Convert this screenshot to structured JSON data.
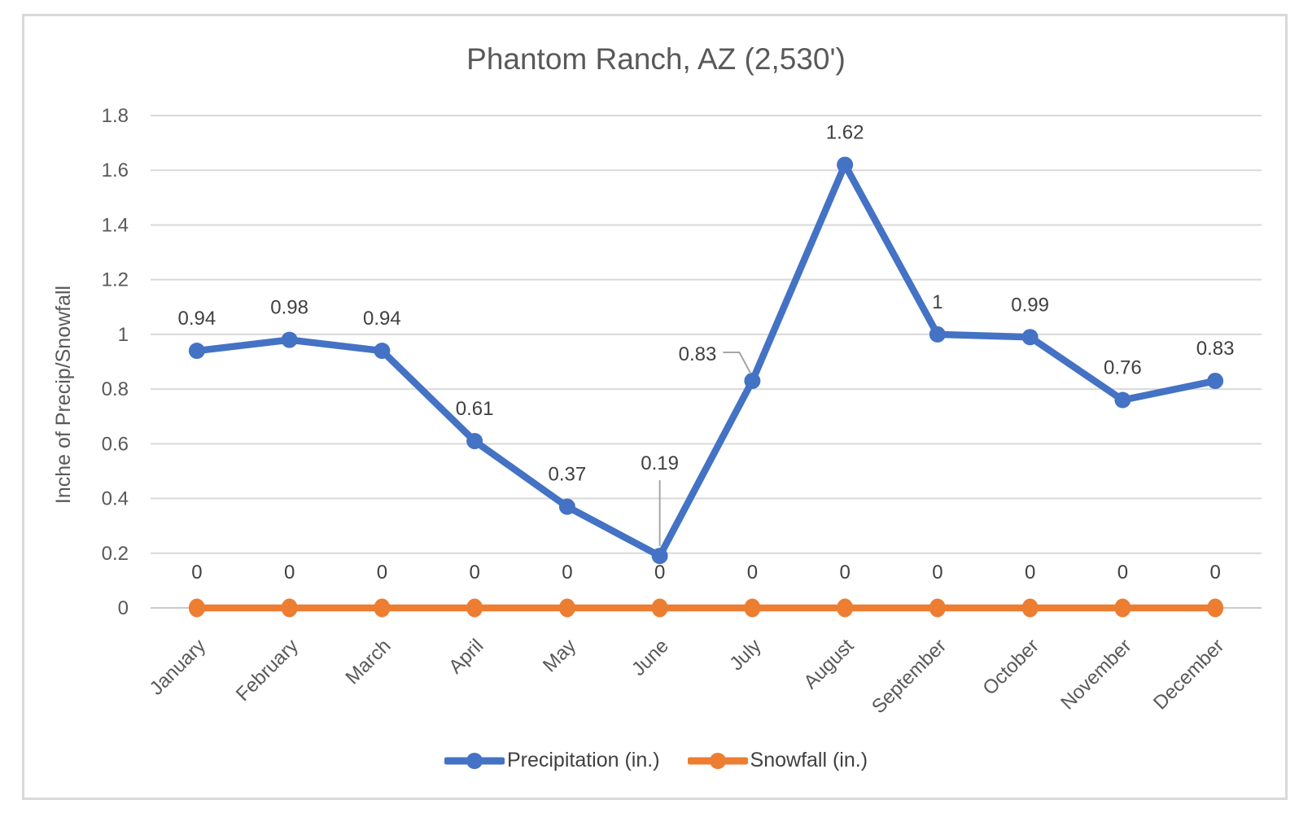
{
  "chart_data": {
    "type": "line",
    "title": "Phantom Ranch, AZ (2,530')",
    "xlabel": "",
    "ylabel": "Inche of Precip/Snowfall",
    "categories": [
      "January",
      "February",
      "March",
      "April",
      "May",
      "June",
      "July",
      "August",
      "September",
      "October",
      "November",
      "December"
    ],
    "series": [
      {
        "name": "Precipitation (in.)",
        "color": "#4472C4",
        "values": [
          0.94,
          0.98,
          0.94,
          0.61,
          0.37,
          0.19,
          0.83,
          1.62,
          1,
          0.99,
          0.76,
          0.83
        ],
        "labels": [
          "0.94",
          "0.98",
          "0.94",
          "0.61",
          "0.37",
          "0.19",
          "0.83",
          "1.62",
          "1",
          "0.99",
          "0.76",
          "0.83"
        ]
      },
      {
        "name": "Snowfall (in.)",
        "color": "#ED7D31",
        "values": [
          0,
          0,
          0,
          0,
          0,
          0,
          0,
          0,
          0,
          0,
          0,
          0
        ],
        "labels": [
          "0",
          "0",
          "0",
          "0",
          "0",
          "0",
          "0",
          "0",
          "0",
          "0",
          "0",
          "0"
        ]
      }
    ],
    "ylim": [
      0,
      1.8
    ],
    "ytick_step": 0.2,
    "ytick_labels": [
      "0",
      "0.2",
      "0.4",
      "0.6",
      "0.8",
      "1",
      "1.2",
      "1.4",
      "1.6",
      "1.8"
    ],
    "grid": "horizontal",
    "legend_position": "bottom",
    "callouts": [
      {
        "category": "June",
        "series": "Precipitation (in.)",
        "label": "0.19",
        "leader": "vertical"
      },
      {
        "category": "July",
        "series": "Precipitation (in.)",
        "label": "0.83",
        "leader": "bent"
      }
    ],
    "colors": {
      "gridline": "#D9D9D9",
      "axis_line": "#C9C9C9",
      "title_text": "#595959",
      "axis_text": "#595959",
      "data_label_text": "#404040",
      "leader_line": "#A6A6A6",
      "legend_text": "#404040",
      "frame_border": "#D9D9D9"
    }
  }
}
